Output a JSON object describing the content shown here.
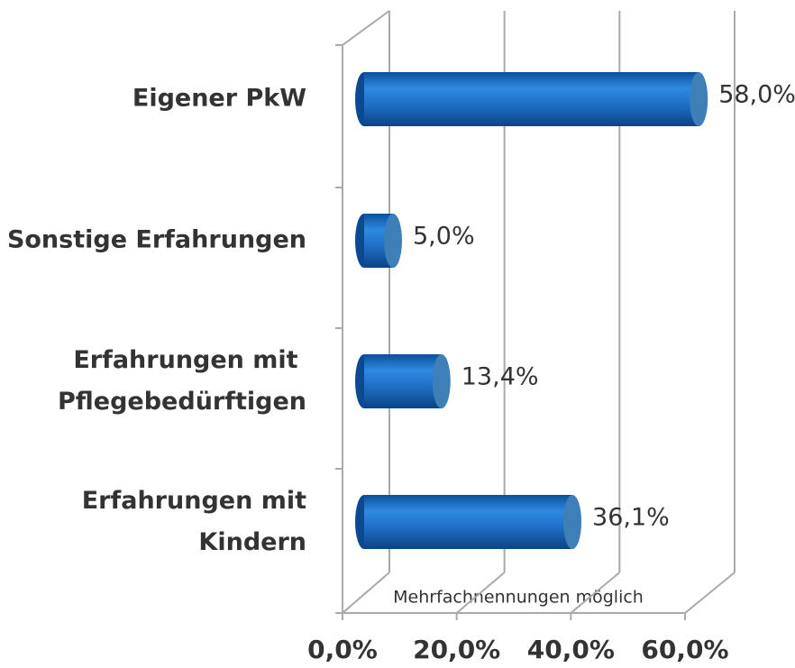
{
  "chart_data": {
    "type": "bar",
    "orientation": "horizontal",
    "categories": [
      "Eigener PkW",
      "Sonstige Erfahrungen",
      "Erfahrungen mit \nPflegebedürftigen",
      "Erfahrungen mit\nKindern"
    ],
    "values": [
      58.0,
      5.0,
      13.4,
      36.1
    ],
    "value_labels": [
      "58,0%",
      "5,0%",
      "13,4%",
      "36,1%"
    ],
    "color": "#1f6fc5",
    "xlim": [
      0,
      60
    ],
    "xticks": [
      {
        "value": 0,
        "label": "0,0%"
      },
      {
        "value": 20,
        "label": "20,0%"
      },
      {
        "value": 40,
        "label": "40,0%"
      },
      {
        "value": 60,
        "label": "60,0%"
      }
    ],
    "grid": true,
    "annotation": "Mehrfachnennungen möglich"
  }
}
